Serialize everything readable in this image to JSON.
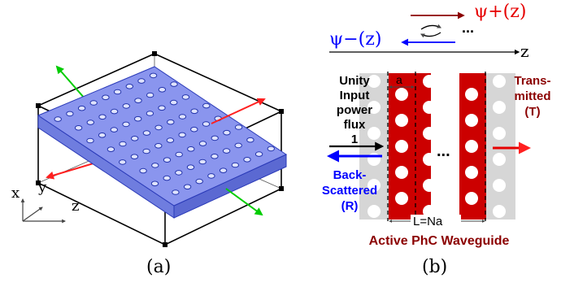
{
  "panel_a": {
    "caption": "(a)",
    "axes": {
      "x": "x",
      "y": "y",
      "z": "z"
    }
  },
  "panel_b": {
    "caption": "(b)",
    "psi_plus": "ψ+(z)",
    "psi_minus": "ψ−(z)",
    "ellipsis": "...",
    "z_axis": "z",
    "input_lines": [
      "Unity",
      "Input",
      "power",
      "flux",
      "1"
    ],
    "period_label": "a",
    "length_label": "L=Na",
    "transmitted_lines": [
      "Trans-",
      "mitted",
      "(T)"
    ],
    "backscattered_lines": [
      "Back-",
      "Scattered",
      "(R)"
    ],
    "waveguide_label": "Active PhC Waveguide",
    "colors": {
      "red": "#e60000",
      "dark_red": "#8b0000",
      "blue": "#0000ff",
      "slab_fill": "#8a95ee",
      "hole_fill": "#d6d6d6",
      "arrow_green": "#00cc00",
      "arrow_red": "#ff2020"
    }
  }
}
